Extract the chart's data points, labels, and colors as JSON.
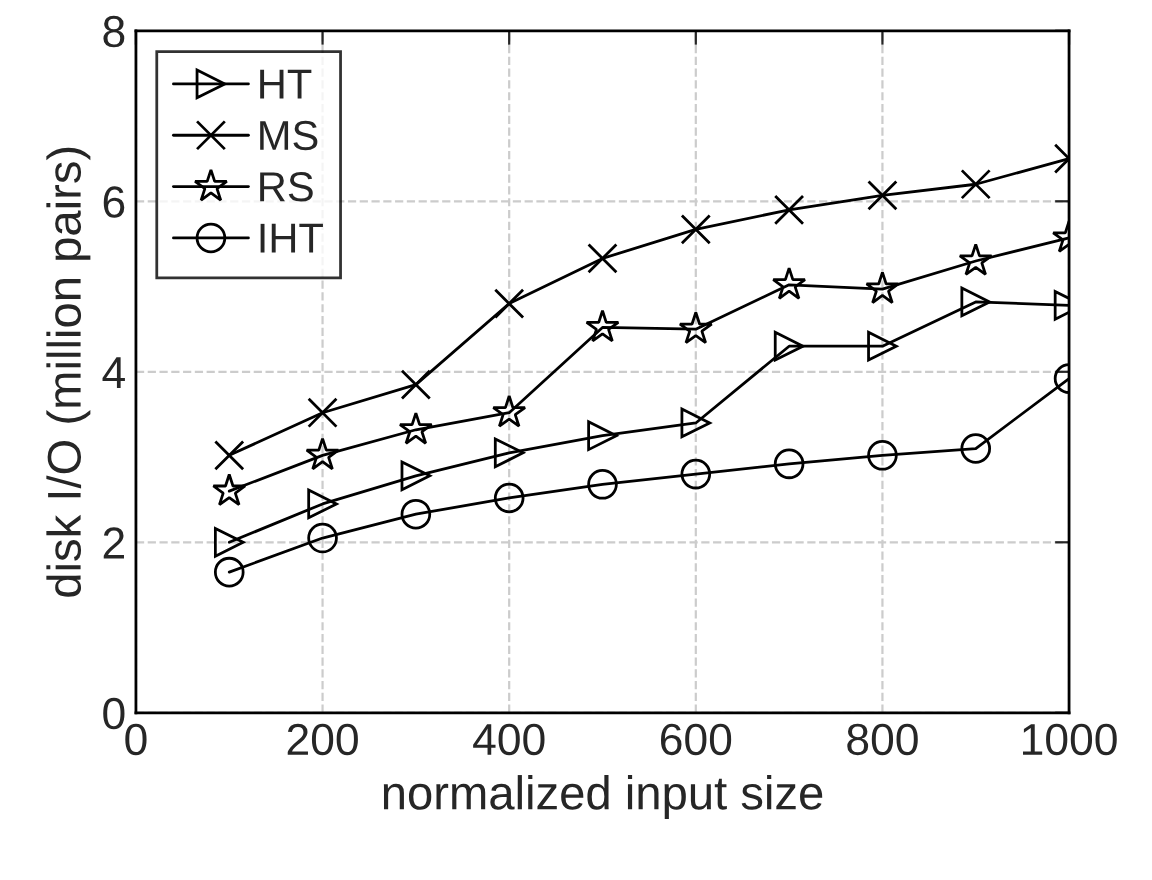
{
  "chart_data": {
    "type": "line",
    "xlabel": "normalized input size",
    "ylabel": "disk I/O (million pairs)",
    "x": [
      100,
      200,
      300,
      400,
      500,
      600,
      700,
      800,
      900,
      1000
    ],
    "series": [
      {
        "name": "HT",
        "color": "#000000",
        "marker": "triangle",
        "values": [
          2.0,
          2.45,
          2.78,
          3.05,
          3.25,
          3.4,
          4.3,
          4.3,
          4.82,
          4.78
        ]
      },
      {
        "name": "MS",
        "color": "#000000",
        "marker": "cross",
        "values": [
          3.02,
          3.52,
          3.85,
          4.8,
          5.33,
          5.67,
          5.9,
          6.07,
          6.2,
          6.5
        ]
      },
      {
        "name": "RS",
        "color": "#000000",
        "marker": "star",
        "values": [
          2.6,
          3.02,
          3.32,
          3.52,
          4.52,
          4.5,
          5.02,
          4.97,
          5.3,
          5.57
        ]
      },
      {
        "name": "IHT",
        "color": "#000000",
        "marker": "circle",
        "values": [
          1.65,
          2.05,
          2.33,
          2.52,
          2.68,
          2.8,
          2.92,
          3.02,
          3.1,
          3.92
        ]
      }
    ],
    "xlim": [
      0,
      1000
    ],
    "xticks": [
      0,
      200,
      400,
      600,
      800,
      1000
    ],
    "ylim": [
      0,
      8
    ],
    "yticks": [
      0,
      2,
      4,
      6,
      8
    ],
    "grid": true,
    "legend": "top left",
    "line_style": "solid"
  }
}
